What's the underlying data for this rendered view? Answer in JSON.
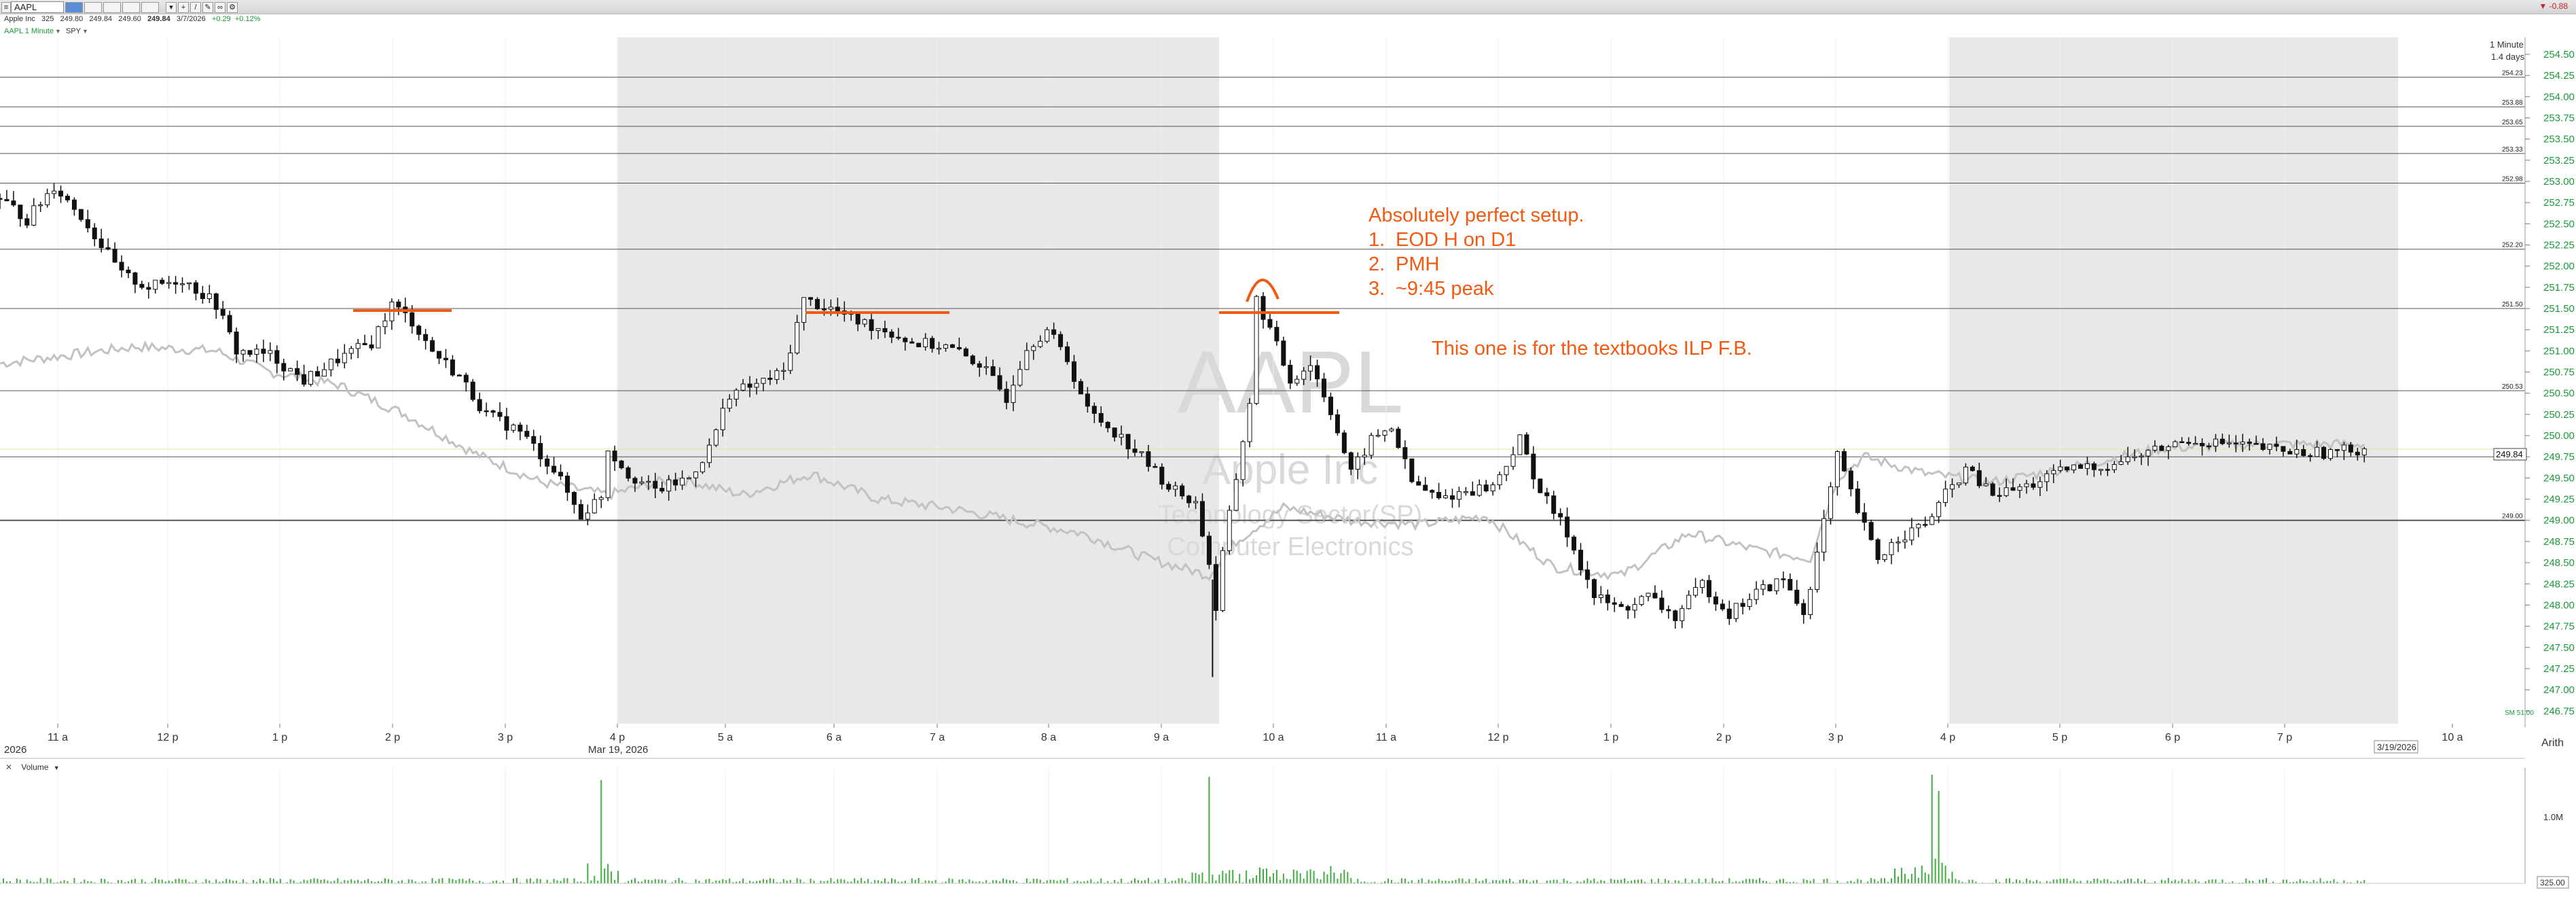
{
  "toolbar": {
    "symbol": "AAPL",
    "status_text": "-0.88"
  },
  "quote": {
    "name": "Apple Inc",
    "volume": "325",
    "bid": "249.80",
    "ask": "249.84",
    "low": "249.60",
    "last": "249.84",
    "date": "3/7/2026",
    "change": "+0.29",
    "change_pct": "+0.12%"
  },
  "interval": {
    "label": "AAPL 1 Minute",
    "compare": "SPY"
  },
  "watermark": {
    "symbol": "AAPL",
    "company": "Apple Inc",
    "sector": "Technology Sector(SP)",
    "industry": "Computer Electronics"
  },
  "annotations": {
    "title": "Absolutely perfect setup.",
    "items": [
      "EOD H on D1",
      "PMH",
      "~9:45 peak"
    ],
    "numbers": [
      "1.",
      "2.",
      "3."
    ],
    "footnote": "This one is for the textbooks ILP F.B."
  },
  "top_right": {
    "interval": "1 Minute",
    "days": "1.4 days"
  },
  "axis": {
    "date_start": "2026",
    "date_mid": "Mar 19, 2026",
    "date_end": "3/19/2026",
    "arith_label": "Arith"
  },
  "volume": {
    "label": "Volume",
    "axis_labels": [
      "1.0M",
      "325.00"
    ]
  },
  "colors": {
    "annotation": "#f25a12",
    "price": "#111111",
    "compare": "#c0c0c0",
    "shade": "#e8e8e8",
    "volume": "#3fae3f",
    "axis_text": "#1b9a3a"
  },
  "chart_data": {
    "type": "candlestick",
    "interval": "1 Minute",
    "x_tick_labels": [
      "11 a",
      "12 p",
      "1 p",
      "2 p",
      "3 p",
      "4 p",
      "5 a",
      "6 a",
      "7 a",
      "8 a",
      "9 a",
      "10 a",
      "11 a",
      "12 p",
      "1 p",
      "2 p",
      "3 p",
      "4 p",
      "5 p",
      "6 p",
      "7 p",
      "10 a"
    ],
    "y_ticks": [
      "246.75",
      "247.00",
      "247.25",
      "247.50",
      "247.75",
      "248.00",
      "248.25",
      "248.50",
      "248.75",
      "249.00",
      "249.25",
      "249.50",
      "249.75",
      "250.00",
      "250.25",
      "250.50",
      "250.75",
      "251.00",
      "251.25",
      "251.50",
      "251.75",
      "252.00",
      "252.25",
      "252.50",
      "252.75",
      "253.00",
      "253.25",
      "253.50",
      "253.75",
      "254.00",
      "254.25",
      "254.50"
    ],
    "ylim": [
      246.6,
      254.7
    ],
    "horizontal_levels": [
      "254.23",
      "253.88",
      "253.65",
      "253.33",
      "252.98",
      "252.20",
      "251.50",
      "250.53",
      "249.75",
      "249.00"
    ],
    "last_price": "249.84",
    "low_marker": "SM 51.00",
    "price_path": [
      [
        0,
        252.8
      ],
      [
        4,
        252.55
      ],
      [
        8,
        252.95
      ],
      [
        12,
        252.6
      ],
      [
        15,
        252.25
      ],
      [
        18,
        251.9
      ],
      [
        22,
        251.75
      ],
      [
        27,
        251.85
      ],
      [
        32,
        251.55
      ],
      [
        35,
        251.0
      ],
      [
        40,
        250.95
      ],
      [
        45,
        250.65
      ],
      [
        50,
        250.9
      ],
      [
        55,
        251.1
      ],
      [
        58,
        251.55
      ],
      [
        61,
        251.35
      ],
      [
        64,
        251.0
      ],
      [
        68,
        250.7
      ],
      [
        72,
        250.25
      ],
      [
        77,
        250.05
      ],
      [
        82,
        249.6
      ],
      [
        86,
        249.05
      ],
      [
        89,
        249.3
      ],
      [
        90,
        249.85
      ],
      [
        93,
        249.55
      ],
      [
        97,
        249.35
      ],
      [
        102,
        249.5
      ],
      [
        105,
        249.85
      ],
      [
        108,
        250.5
      ],
      [
        112,
        250.6
      ],
      [
        116,
        250.75
      ],
      [
        119,
        251.6
      ],
      [
        123,
        251.5
      ],
      [
        127,
        251.35
      ],
      [
        131,
        251.25
      ],
      [
        135,
        251.1
      ],
      [
        140,
        251.05
      ],
      [
        145,
        250.85
      ],
      [
        149,
        250.45
      ],
      [
        152,
        251.05
      ],
      [
        155,
        251.25
      ],
      [
        158,
        250.9
      ],
      [
        161,
        250.3
      ],
      [
        165,
        250.05
      ],
      [
        169,
        249.75
      ],
      [
        173,
        249.4
      ],
      [
        177,
        249.2
      ],
      [
        179,
        248.5
      ],
      [
        180,
        247.95
      ],
      [
        181,
        248.6
      ],
      [
        183,
        249.5
      ],
      [
        185,
        250.4
      ],
      [
        186,
        251.6
      ],
      [
        188,
        251.25
      ],
      [
        191,
        250.65
      ],
      [
        194,
        250.85
      ],
      [
        197,
        250.3
      ],
      [
        200,
        249.55
      ],
      [
        203,
        249.95
      ],
      [
        206,
        250.1
      ],
      [
        209,
        249.45
      ],
      [
        213,
        249.25
      ],
      [
        217,
        249.35
      ],
      [
        221,
        249.4
      ],
      [
        225,
        249.95
      ],
      [
        228,
        249.35
      ],
      [
        232,
        248.85
      ],
      [
        236,
        248.1
      ],
      [
        240,
        247.95
      ],
      [
        244,
        248.1
      ],
      [
        248,
        247.85
      ],
      [
        252,
        248.25
      ],
      [
        256,
        247.9
      ],
      [
        260,
        248.15
      ],
      [
        264,
        248.3
      ],
      [
        267,
        247.9
      ],
      [
        269,
        248.6
      ],
      [
        272,
        249.75
      ],
      [
        275,
        249.1
      ],
      [
        278,
        248.55
      ],
      [
        281,
        248.8
      ],
      [
        285,
        248.95
      ],
      [
        288,
        249.3
      ],
      [
        291,
        249.6
      ],
      [
        295,
        249.3
      ],
      [
        300,
        249.4
      ],
      [
        306,
        249.6
      ],
      [
        312,
        249.65
      ],
      [
        318,
        249.8
      ],
      [
        324,
        249.95
      ],
      [
        330,
        249.9
      ],
      [
        335,
        249.85
      ],
      [
        340,
        249.8
      ],
      [
        345,
        249.8
      ],
      [
        350,
        249.85
      ]
    ],
    "compare_path": [
      [
        0,
        250.85
      ],
      [
        10,
        250.95
      ],
      [
        20,
        251.05
      ],
      [
        32,
        251.0
      ],
      [
        40,
        250.75
      ],
      [
        50,
        250.6
      ],
      [
        60,
        250.25
      ],
      [
        70,
        249.8
      ],
      [
        80,
        249.45
      ],
      [
        90,
        249.3
      ],
      [
        100,
        249.5
      ],
      [
        110,
        249.3
      ],
      [
        120,
        249.55
      ],
      [
        130,
        249.25
      ],
      [
        140,
        249.15
      ],
      [
        150,
        249.0
      ],
      [
        160,
        248.85
      ],
      [
        170,
        248.55
      ],
      [
        179,
        248.35
      ],
      [
        183,
        248.75
      ],
      [
        190,
        249.15
      ],
      [
        200,
        249.0
      ],
      [
        210,
        248.95
      ],
      [
        220,
        249.05
      ],
      [
        230,
        248.45
      ],
      [
        240,
        248.35
      ],
      [
        250,
        248.85
      ],
      [
        260,
        248.65
      ],
      [
        268,
        248.55
      ],
      [
        272,
        249.5
      ],
      [
        276,
        249.75
      ],
      [
        285,
        249.55
      ],
      [
        295,
        249.45
      ],
      [
        305,
        249.6
      ],
      [
        320,
        249.85
      ],
      [
        335,
        249.9
      ],
      [
        350,
        249.9
      ]
    ],
    "volume_spikes": [
      [
        89,
        0.95
      ],
      [
        179,
        0.98
      ],
      [
        286,
        1.0
      ],
      [
        287,
        0.85
      ]
    ]
  }
}
